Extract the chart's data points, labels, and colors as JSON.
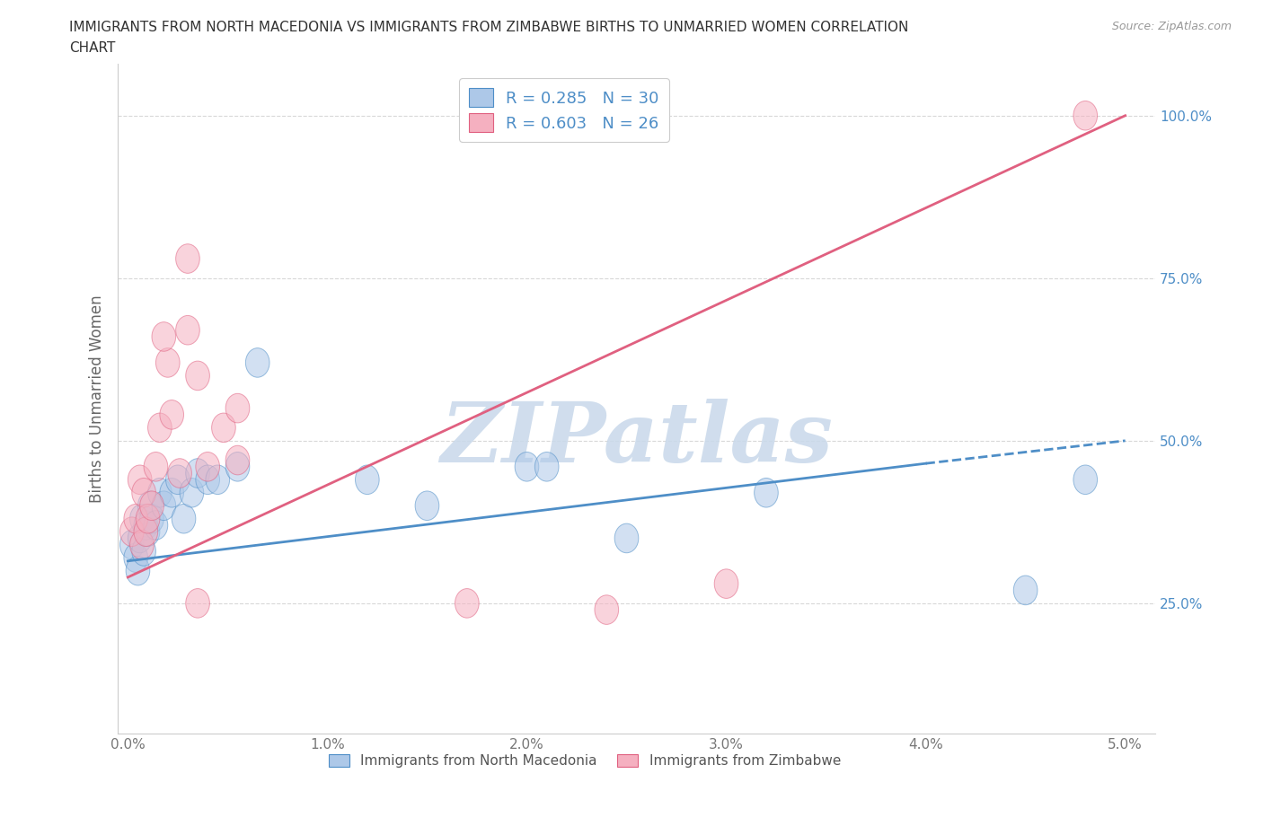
{
  "title_line1": "IMMIGRANTS FROM NORTH MACEDONIA VS IMMIGRANTS FROM ZIMBABWE BIRTHS TO UNMARRIED WOMEN CORRELATION",
  "title_line2": "CHART",
  "source_text": "Source: ZipAtlas.com",
  "ylabel": "Births to Unmarried Women",
  "legend_label_blue": "Immigrants from North Macedonia",
  "legend_label_pink": "Immigrants from Zimbabwe",
  "R_blue": 0.285,
  "N_blue": 30,
  "R_pink": 0.603,
  "N_pink": 26,
  "color_blue": "#adc8e8",
  "color_pink": "#f5b0c0",
  "trendline_blue": "#4e8ec7",
  "trendline_pink": "#e06080",
  "xlim": [
    -0.05,
    5.15
  ],
  "ylim": [
    5.0,
    108.0
  ],
  "yticks": [
    25.0,
    50.0,
    75.0,
    100.0
  ],
  "ytick_labels": [
    "25.0%",
    "50.0%",
    "75.0%",
    "100.0%"
  ],
  "xticks": [
    0.0,
    1.0,
    2.0,
    3.0,
    4.0,
    5.0
  ],
  "xtick_labels": [
    "0.0%",
    "1.0%",
    "2.0%",
    "3.0%",
    "4.0%",
    "5.0%"
  ],
  "blue_x": [
    0.02,
    0.04,
    0.05,
    0.06,
    0.07,
    0.08,
    0.09,
    0.1,
    0.11,
    0.12,
    0.14,
    0.16,
    0.18,
    0.22,
    0.25,
    0.28,
    0.32,
    0.35,
    0.4,
    0.45,
    0.55,
    0.65,
    1.2,
    1.5,
    2.0,
    2.5,
    3.2,
    4.5,
    4.8,
    2.1
  ],
  "blue_y": [
    34,
    32,
    30,
    35,
    38,
    33,
    37,
    36,
    40,
    38,
    37,
    42,
    40,
    42,
    44,
    38,
    42,
    45,
    44,
    44,
    46,
    62,
    44,
    40,
    46,
    35,
    42,
    27,
    44,
    46
  ],
  "pink_x": [
    0.02,
    0.04,
    0.06,
    0.07,
    0.08,
    0.09,
    0.1,
    0.12,
    0.14,
    0.16,
    0.2,
    0.22,
    0.26,
    0.3,
    0.35,
    0.4,
    0.48,
    0.55,
    0.35,
    0.55,
    1.7,
    2.4,
    3.0,
    4.8,
    0.3,
    0.18
  ],
  "pink_y": [
    36,
    38,
    44,
    34,
    42,
    36,
    38,
    40,
    46,
    52,
    62,
    54,
    45,
    67,
    60,
    46,
    52,
    55,
    25,
    47,
    25,
    24,
    28,
    100,
    78,
    66
  ],
  "blue_trend_x0": 0.0,
  "blue_trend_y0": 31.5,
  "blue_trend_x1": 4.0,
  "blue_trend_y1": 46.5,
  "blue_trend_dashed_x1": 5.0,
  "blue_trend_dashed_y1": 50.0,
  "pink_trend_x0": 0.0,
  "pink_trend_y0": 29.0,
  "pink_trend_x1": 5.0,
  "pink_trend_y1": 100.0,
  "watermark_text": "ZIPatlas",
  "watermark_color": "#c8d8ea",
  "background_color": "#ffffff",
  "grid_color": "#d8d8d8"
}
